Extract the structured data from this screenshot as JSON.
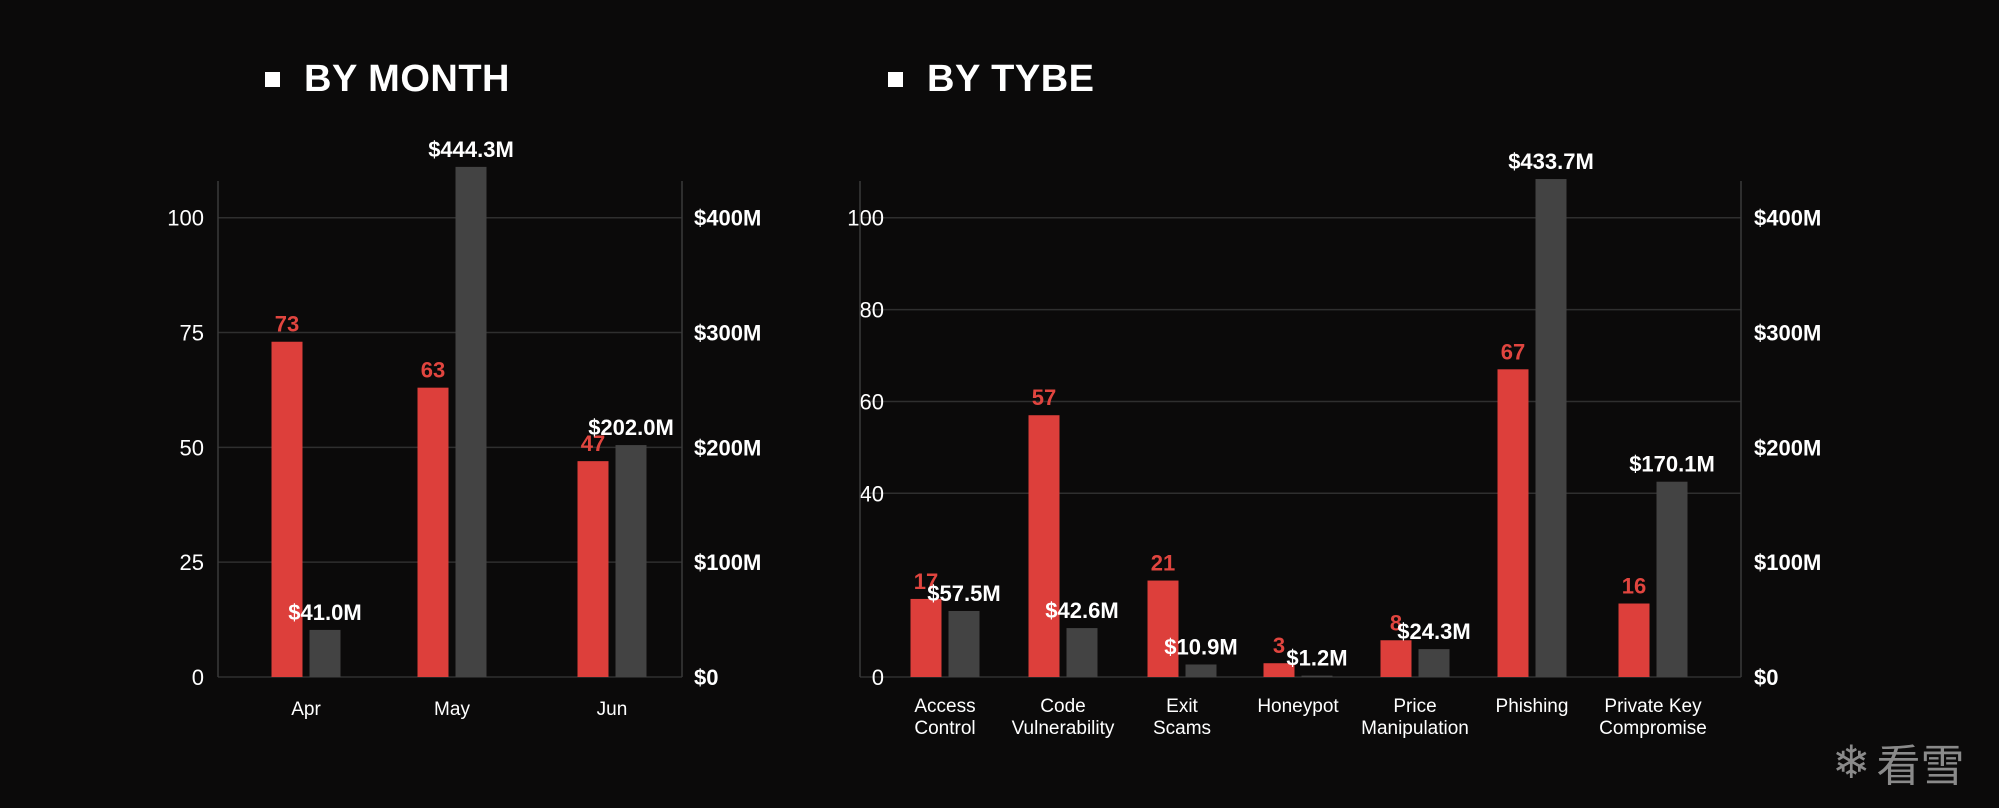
{
  "left_title": "BY MONTH",
  "right_title": "BY TYBE",
  "watermark": {
    "icon": "snowflake-icon",
    "text": "看雪"
  },
  "colors": {
    "count": "#dd3f3b",
    "amount": "#434343",
    "count_label": "#e1453f",
    "amount_label": "#ffffff"
  },
  "chart_data": [
    {
      "type": "bar",
      "title": "BY MONTH",
      "categories": [
        "Apr",
        "May",
        "Jun"
      ],
      "series": [
        {
          "values": [
            73,
            63,
            47
          ],
          "labels": [
            "73",
            "63",
            "47"
          ],
          "axis": "left"
        },
        {
          "values": [
            41.0,
            444.3,
            202.0
          ],
          "labels": [
            "$41.0M",
            "$444.3M",
            "$202.0M"
          ],
          "axis": "right"
        }
      ],
      "left_axis": {
        "ylim": [
          0,
          108
        ],
        "ticks": [
          0,
          25,
          50,
          75,
          100
        ],
        "tick_labels": [
          "0",
          "25",
          "50",
          "75",
          "100"
        ]
      },
      "right_axis": {
        "ylim": [
          0,
          432
        ],
        "ticks": [
          0,
          100,
          200,
          300,
          400
        ],
        "tick_labels": [
          "$0",
          "$100M",
          "$200M",
          "$300M",
          "$400M"
        ]
      },
      "grid": true
    },
    {
      "type": "bar",
      "title": "BY TYBE",
      "categories": [
        "Access\nControl",
        "Code\nVulnerability",
        "Exit\nScams",
        "Honeypot",
        "Price\nManipulation",
        "Phishing",
        "Private Key\nCompromise"
      ],
      "series": [
        {
          "values": [
            17,
            57,
            21,
            3,
            8,
            67,
            16
          ],
          "labels": [
            "17",
            "57",
            "21",
            "3",
            "8",
            "67",
            "16"
          ],
          "axis": "left"
        },
        {
          "values": [
            57.5,
            42.6,
            10.9,
            1.2,
            24.3,
            433.7,
            170.1
          ],
          "labels": [
            "$57.5M",
            "$42.6M",
            "$10.9M",
            "$1.2M",
            "$24.3M",
            "$433.7M",
            "$170.1M"
          ],
          "axis": "right"
        }
      ],
      "left_axis": {
        "ylim": [
          0,
          108
        ],
        "ticks": [
          0,
          40,
          60,
          80,
          100
        ],
        "tick_labels": [
          "0",
          "40",
          "60",
          "80",
          "100"
        ]
      },
      "right_axis": {
        "ylim": [
          0,
          432
        ],
        "ticks": [
          0,
          100,
          200,
          300,
          400
        ],
        "tick_labels": [
          "$0",
          "$100M",
          "$200M",
          "$300M",
          "$400M"
        ]
      },
      "grid": true
    }
  ]
}
